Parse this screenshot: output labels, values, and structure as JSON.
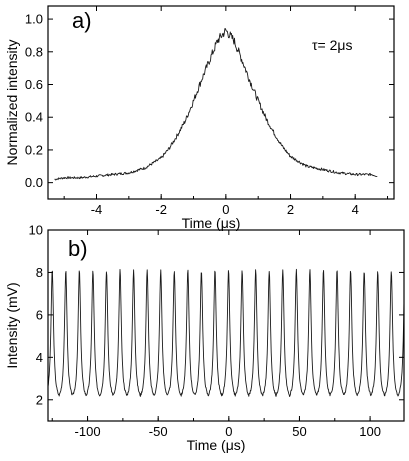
{
  "chart_data": [
    {
      "type": "line",
      "panel_label": "a)",
      "annotation": "τ= 2μs",
      "xlabel": "Time (μs)",
      "ylabel": "Normalized intensity",
      "xlim": [
        -5.5,
        5.2
      ],
      "ylim": [
        -0.1,
        1.08
      ],
      "xticks": [
        -4,
        -2,
        0,
        2,
        4
      ],
      "yticks": [
        0.0,
        0.2,
        0.4,
        0.6,
        0.8,
        1.0
      ],
      "ytick_labels": [
        "0.0",
        "0.2",
        "0.4",
        "0.6",
        "0.8",
        "1.0"
      ],
      "grid": false,
      "series": [
        {
          "x": [
            -5.3,
            -5.0,
            -4.5,
            -4.0,
            -3.5,
            -3.0,
            -2.5,
            -2.0,
            -1.75,
            -1.5,
            -1.25,
            -1.0,
            -0.75,
            -0.5,
            -0.25,
            0.0,
            0.25,
            0.5,
            0.75,
            1.0,
            1.25,
            1.5,
            1.75,
            2.0,
            2.5,
            3.0,
            3.5,
            4.0,
            4.5,
            4.7
          ],
          "y": [
            0.02,
            0.03,
            0.03,
            0.04,
            0.05,
            0.06,
            0.09,
            0.15,
            0.21,
            0.29,
            0.38,
            0.5,
            0.63,
            0.75,
            0.87,
            0.93,
            0.87,
            0.75,
            0.62,
            0.5,
            0.39,
            0.3,
            0.22,
            0.16,
            0.1,
            0.08,
            0.06,
            0.05,
            0.05,
            0.04
          ]
        }
      ]
    },
    {
      "type": "line",
      "panel_label": "b)",
      "xlabel": "Time (μs)",
      "ylabel": "Intensity (mV)",
      "xlim": [
        -128,
        124
      ],
      "ylim": [
        1,
        10
      ],
      "xticks": [
        -100,
        -50,
        0,
        50,
        100
      ],
      "yticks": [
        2,
        4,
        6,
        8,
        10
      ],
      "ytick_labels": [
        "2",
        "4",
        "6",
        "8",
        "10"
      ],
      "grid": false,
      "series": [
        {
          "pulse_period_us": 9.6,
          "pulse_width_us": 2,
          "first_peak_x": -125,
          "baseline": 1.9,
          "peak": 8.1
        }
      ]
    }
  ]
}
